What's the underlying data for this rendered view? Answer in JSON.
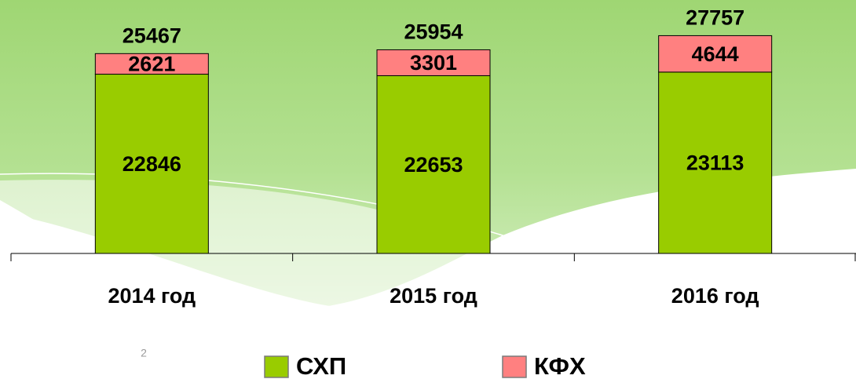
{
  "chart_data": {
    "type": "stacked_bar",
    "categories": [
      "2014 год",
      "2015 год",
      "2016 год"
    ],
    "series": [
      {
        "name": "СХП",
        "color": "#99cc00",
        "values": [
          22846,
          22653,
          23113
        ]
      },
      {
        "name": "КФХ",
        "color": "#ff8080",
        "values": [
          2621,
          3301,
          4644
        ]
      }
    ],
    "totals": [
      25467,
      25954,
      27757
    ],
    "ylim": [
      0,
      28000
    ]
  },
  "page_number": "2"
}
